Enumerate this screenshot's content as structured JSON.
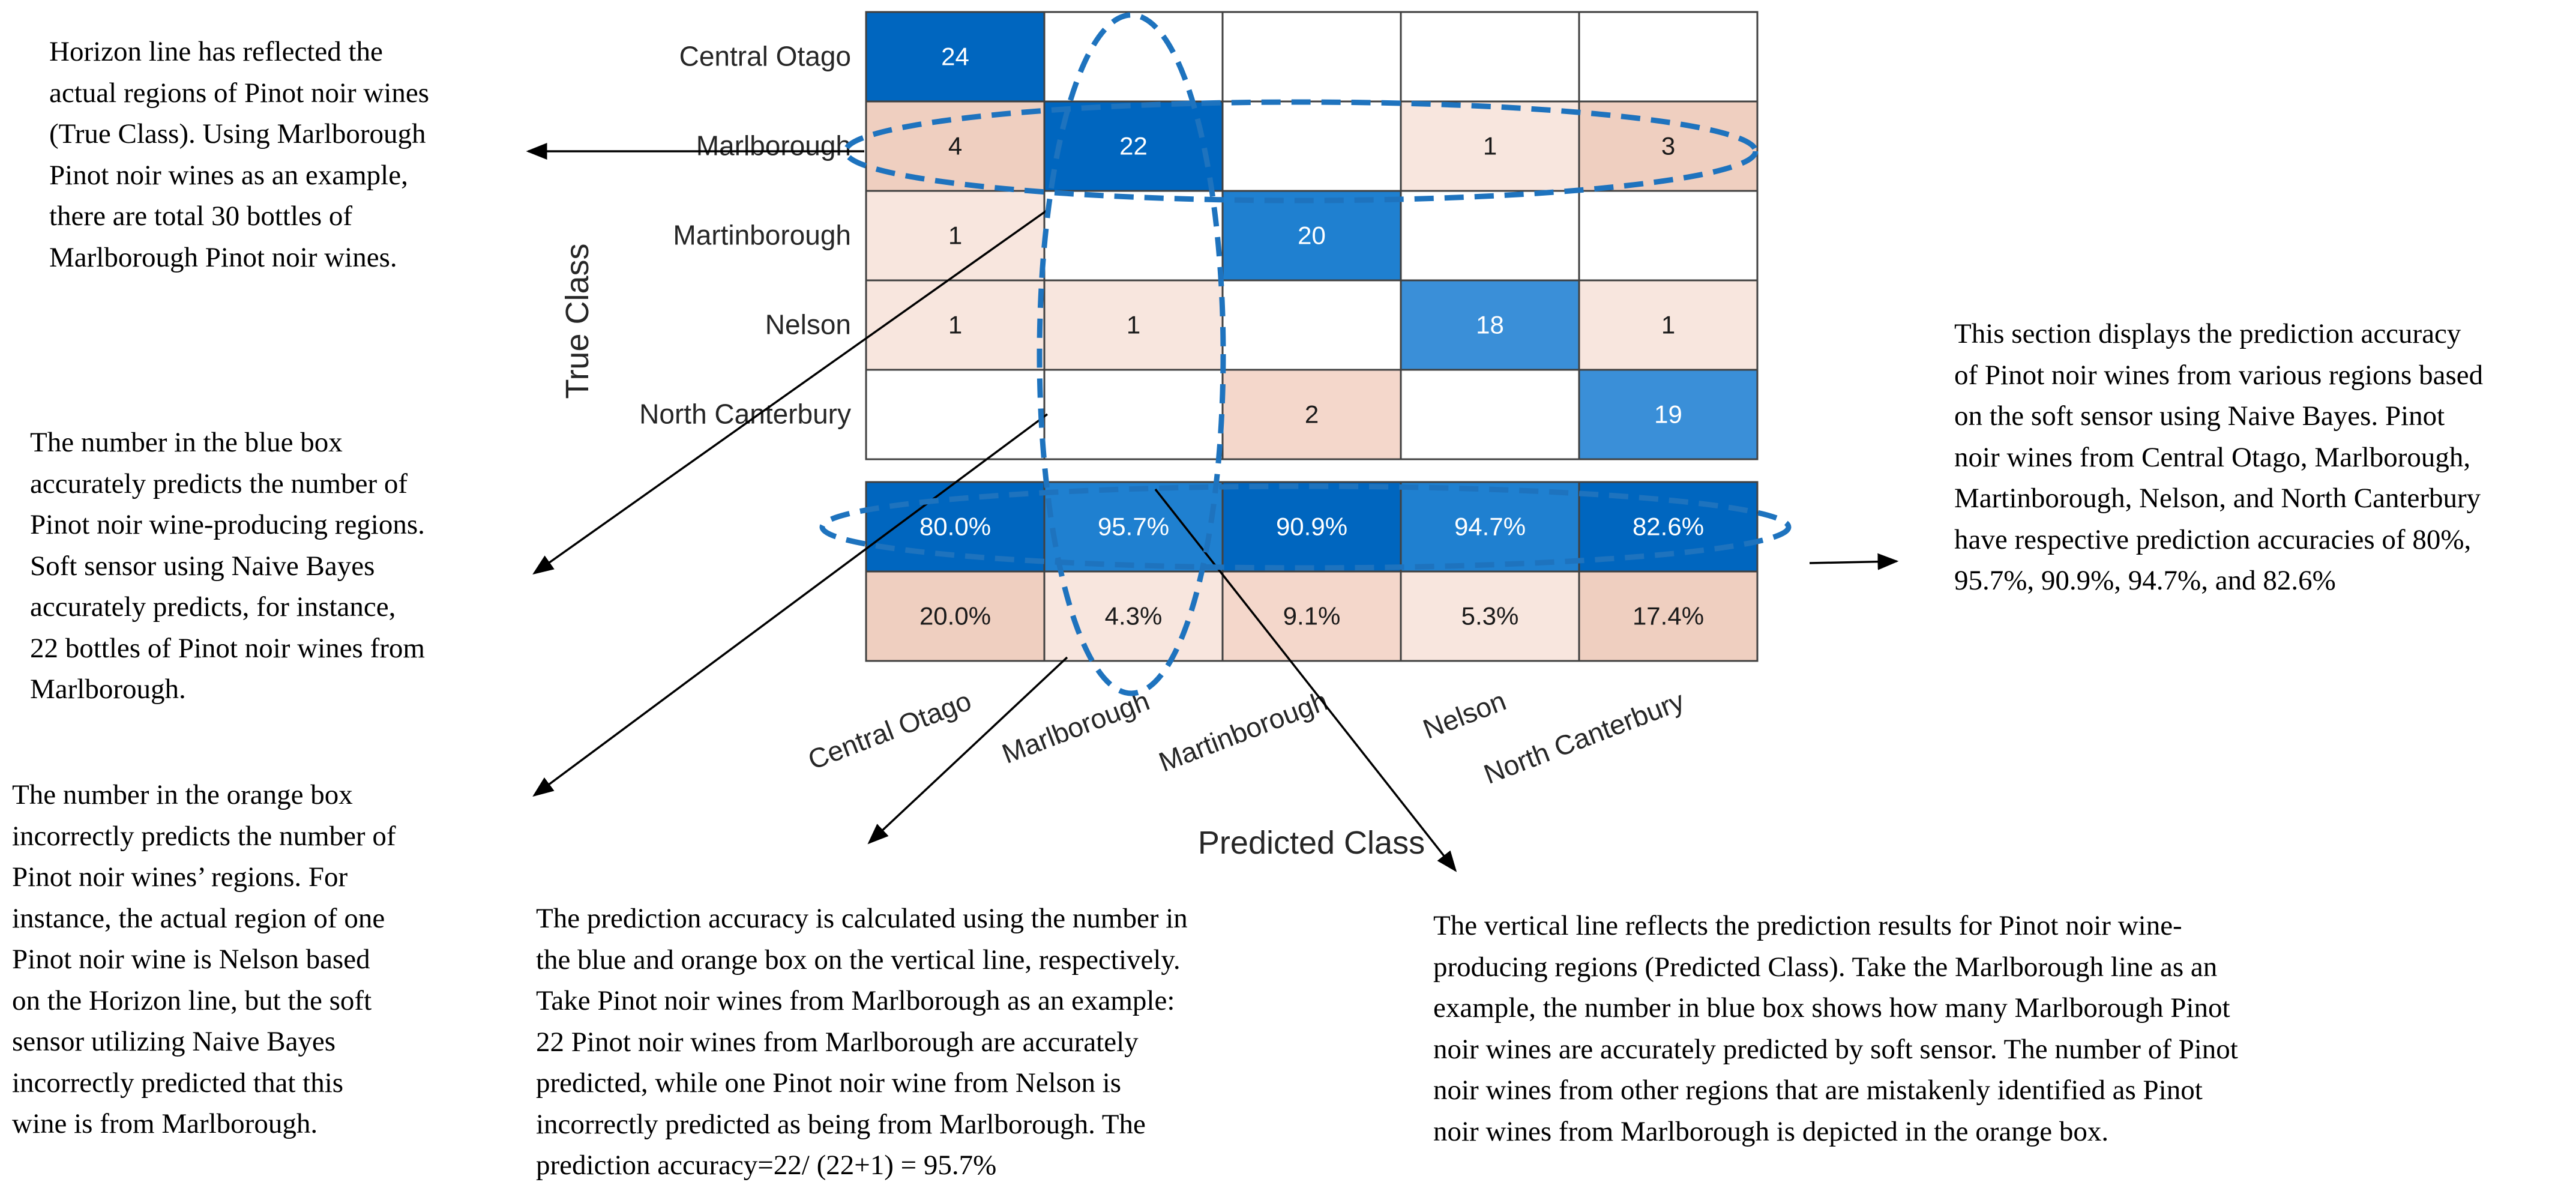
{
  "colors": {
    "blue_dark": "#0066BF",
    "blue_mid": "#1F80D0",
    "blue_light": "#3A8FD8",
    "orange_light": "#F8E6DE",
    "orange_mid": "#F4D7CB",
    "orange_strong": "#EFCFC0",
    "dash": "#1E73BE"
  },
  "chart_data": {
    "type": "heatmap",
    "title": "",
    "ylabel": "True Class",
    "xlabel": "Predicted Class",
    "classes": [
      "Central Otago",
      "Marlborough",
      "Martinborough",
      "Nelson",
      "North Canterbury"
    ],
    "matrix": [
      [
        24,
        null,
        null,
        null,
        null
      ],
      [
        4,
        22,
        null,
        1,
        3
      ],
      [
        1,
        null,
        20,
        null,
        null
      ],
      [
        1,
        1,
        null,
        18,
        1
      ],
      [
        null,
        null,
        2,
        null,
        19
      ]
    ],
    "column_summary": {
      "correct": [
        "80.0%",
        "95.7%",
        "90.9%",
        "94.7%",
        "82.6%"
      ],
      "incorrect": [
        "20.0%",
        "4.3%",
        "9.1%",
        "5.3%",
        "17.4%"
      ]
    }
  },
  "notes": {
    "horizon": [
      "Horizon line has reflected the",
      "actual regions of Pinot noir wines",
      "(True Class). Using Marlborough",
      "Pinot noir wines as an example,",
      "there are total 30 bottles of",
      "Marlborough Pinot noir wines."
    ],
    "blue_box": [
      "The number in the blue box",
      "accurately predicts the number of",
      "Pinot noir wine-producing regions.",
      "Soft sensor using Naive Bayes",
      "accurately predicts, for instance,",
      "22 bottles of Pinot noir wines from",
      "Marlborough."
    ],
    "orange_box": [
      "The number in the orange box",
      "incorrectly predicts the number of",
      "Pinot noir wines’ regions. For",
      "instance, the actual region of one",
      "Pinot noir wine is Nelson based",
      "on the Horizon line, but the soft",
      "sensor utilizing Naive Bayes",
      "incorrectly predicted that this",
      "wine is from Marlborough."
    ],
    "accuracy_calc": [
      "The prediction accuracy is calculated using the number in",
      "the blue and orange box on the vertical line, respectively.",
      "Take Pinot noir wines from Marlborough as an example:",
      "22 Pinot noir wines from Marlborough are accurately",
      "predicted, while one Pinot noir wine from Nelson is",
      "incorrectly predicted as being from Marlborough. The",
      "prediction accuracy=22/ (22+1) = 95.7%"
    ],
    "vertical": [
      "The vertical line reflects the prediction results for Pinot noir wine-",
      "producing regions (Predicted Class). Take the Marlborough line as an",
      "example, the number in blue box shows how many Marlborough Pinot",
      "noir wines are accurately predicted by soft sensor. The number of Pinot",
      "noir wines from other regions that are mistakenly identified as Pinot",
      "noir wines from Marlborough is depicted in the orange box."
    ],
    "section": [
      "This section displays the prediction accuracy",
      "of Pinot noir wines from various regions based",
      "on the soft sensor using Naive Bayes. Pinot",
      "noir wines from Central Otago, Marlborough,",
      "Martinborough, Nelson, and North Canterbury",
      "have respective prediction accuracies of 80%,",
      "95.7%, 90.9%, 94.7%, and 82.6%"
    ]
  }
}
